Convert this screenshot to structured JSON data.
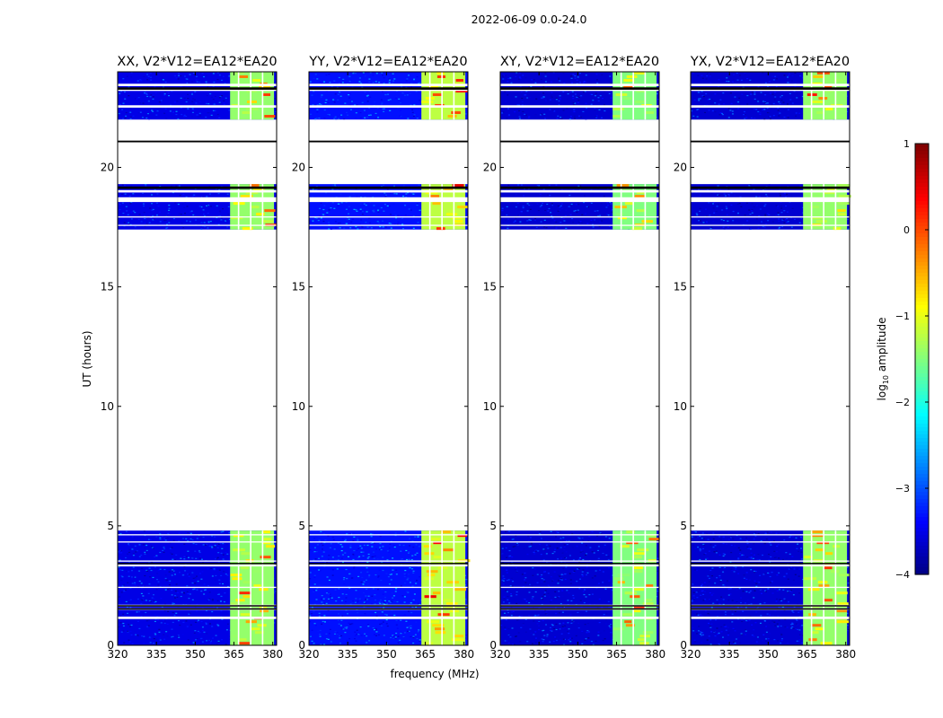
{
  "figure": {
    "suptitle": "2022-06-09 0.0-24.0",
    "xlabel": "frequency (MHz)",
    "ylabel": "UT (hours)"
  },
  "colorbar": {
    "label_prefix": "log",
    "label_sub": "10",
    "label_suffix": " amplitude",
    "range": [
      -4,
      1
    ],
    "ticks": [
      1,
      0,
      -1,
      -2,
      -3,
      -4
    ],
    "tick_labels": [
      "1",
      "0",
      "−1",
      "−2",
      "−3",
      "−4"
    ],
    "colormap": "jet"
  },
  "chart_data": {
    "type": "heatmap",
    "xlim": [
      320,
      381.5
    ],
    "ylim": [
      0,
      24
    ],
    "xticks": [
      320,
      335,
      350,
      365,
      380
    ],
    "xtick_labels": [
      "320",
      "335",
      "350",
      "365",
      "380"
    ],
    "yticks": [
      0,
      5,
      10,
      15,
      20
    ],
    "ytick_labels": [
      "0",
      "5",
      "10",
      "15",
      "20"
    ],
    "rfi_band_mhz": [
      363.5,
      380.5
    ],
    "rfi_channel_gaps_mhz": [
      366.5,
      371.2,
      375.8
    ],
    "data_time_ranges_hours": [
      [
        0,
        4.8
      ],
      [
        17.4,
        19.3
      ],
      [
        22.0,
        24.0
      ]
    ],
    "flagged_time_rows_hours": [
      [
        1.1,
        1.2
      ],
      [
        1.48,
        1.56
      ],
      [
        1.62,
        1.7
      ],
      [
        2.4,
        2.45
      ],
      [
        3.3,
        3.38
      ],
      [
        3.5,
        3.55
      ],
      [
        4.3,
        4.35
      ],
      [
        4.6,
        4.65
      ],
      [
        17.55,
        17.6
      ],
      [
        17.9,
        17.95
      ],
      [
        18.55,
        18.75
      ],
      [
        18.95,
        19.05
      ],
      [
        22.5,
        22.6
      ],
      [
        23.2,
        23.3
      ],
      [
        23.4,
        23.5
      ]
    ],
    "black_time_rows_hours": [
      [
        1.5,
        1.55
      ],
      [
        1.63,
        1.68
      ],
      [
        3.4,
        3.45
      ],
      [
        19.1,
        19.2
      ],
      [
        21.05,
        21.12
      ],
      [
        23.25,
        23.35
      ]
    ],
    "panels": [
      {
        "title": "XX, V2*V12=EA12*EA20",
        "background_level": -3.5,
        "rfi_level": -1.4,
        "strong_level": 0.3
      },
      {
        "title": "YY, V2*V12=EA12*EA20",
        "background_level": -3.3,
        "rfi_level": -1.2,
        "strong_level": 0.5
      },
      {
        "title": "XY, V2*V12=EA12*EA20",
        "background_level": -3.6,
        "rfi_level": -1.5,
        "strong_level": 0.2
      },
      {
        "title": "YX, V2*V12=EA12*EA20",
        "background_level": -3.6,
        "rfi_level": -1.4,
        "strong_level": 0.3
      }
    ]
  }
}
